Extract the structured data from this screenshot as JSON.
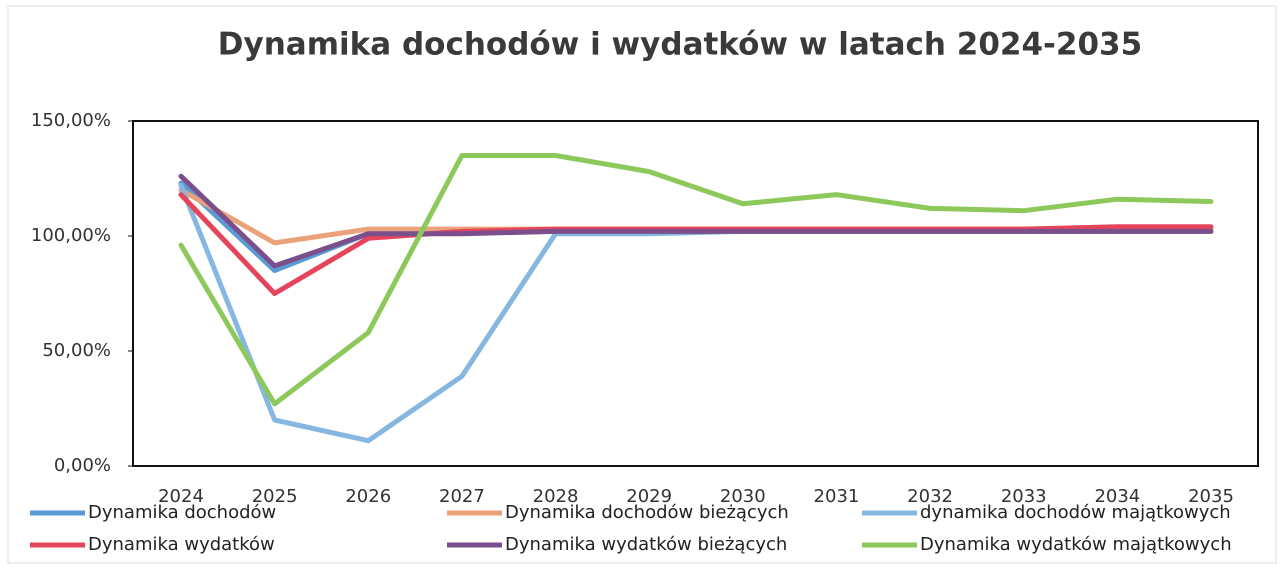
{
  "chart_data": {
    "type": "line",
    "title": "Dynamika dochodów i wydatków w latach 2024-2035",
    "categories": [
      "2024",
      "2025",
      "2026",
      "2027",
      "2028",
      "2029",
      "2030",
      "2031",
      "2032",
      "2033",
      "2034",
      "2035"
    ],
    "ylim": [
      0,
      150
    ],
    "yticks": [
      {
        "value": 0,
        "label": "0,00%"
      },
      {
        "value": 50,
        "label": "50,00%"
      },
      {
        "value": 100,
        "label": "100,00%"
      },
      {
        "value": 150,
        "label": "150,00%"
      }
    ],
    "grid": false,
    "legend": "bottom",
    "series": [
      {
        "name": "Dynamika dochodów",
        "color": "#5b9bd5",
        "values": [
          123,
          85,
          101,
          102,
          102,
          102,
          102,
          102,
          102,
          102,
          102,
          102
        ]
      },
      {
        "name": "Dynamika dochodów bieżących",
        "color": "#eba27a",
        "values": [
          120,
          97,
          103,
          103,
          103,
          103,
          103,
          103,
          103,
          103,
          103,
          103
        ]
      },
      {
        "name": "dynamika  dochodów majątkowych",
        "color": "#86b7e0",
        "values": [
          122,
          20,
          11,
          39,
          101,
          101,
          102,
          102,
          102,
          102,
          102,
          102
        ]
      },
      {
        "name": "Dynamika wydatków",
        "color": "#e5455a",
        "values": [
          118,
          75,
          99,
          102,
          103,
          103,
          103,
          103,
          103,
          103,
          104,
          104
        ]
      },
      {
        "name": "Dynamika wydatków bieżących",
        "color": "#7a4f8c",
        "values": [
          126,
          87,
          101,
          101,
          102,
          102,
          102,
          102,
          102,
          102,
          102,
          102
        ]
      },
      {
        "name": "Dynamika wydatków majątkowych",
        "color": "#8dc85a",
        "values": [
          96,
          27,
          58,
          135,
          135,
          128,
          114,
          118,
          112,
          111,
          116,
          115
        ]
      }
    ]
  }
}
